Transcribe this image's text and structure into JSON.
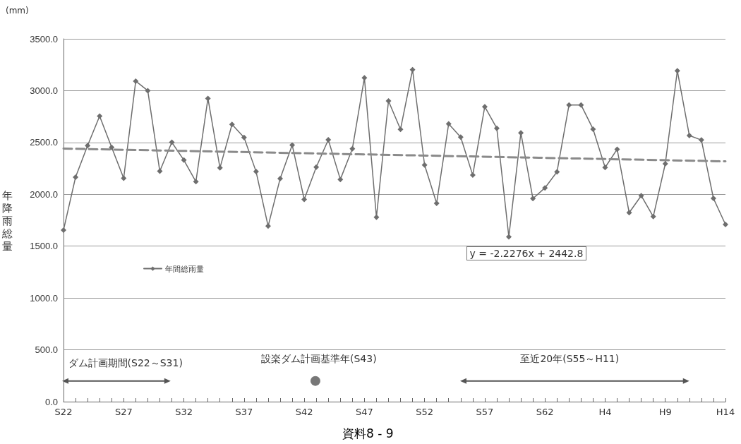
{
  "chart_data": {
    "type": "line",
    "ylabel": "年降雨総量",
    "categories": [
      "S22",
      null,
      null,
      null,
      null,
      "S27",
      null,
      null,
      null,
      null,
      "S32",
      null,
      null,
      null,
      null,
      "S37",
      null,
      null,
      null,
      null,
      "S42",
      null,
      null,
      null,
      null,
      "S47",
      null,
      null,
      null,
      null,
      "S52",
      null,
      null,
      null,
      null,
      "S57",
      null,
      null,
      null,
      null,
      "S62",
      null,
      null,
      null,
      null,
      "H4",
      null,
      null,
      null,
      null,
      "H9",
      null,
      null,
      null,
      null,
      "H14"
    ],
    "series": [
      {
        "name": "年間総雨量",
        "color": "#6e6e6e",
        "marker": "diamond",
        "line_style": "solid",
        "values": [
          1655,
          2165,
          2470,
          2755,
          2453,
          2155,
          3092,
          3000,
          2223,
          2502,
          2330,
          2122,
          2925,
          2255,
          2674,
          2549,
          2219,
          1693,
          2152,
          2476,
          1951,
          2262,
          2526,
          2144,
          2440,
          3124,
          1779,
          2901,
          2627,
          3202,
          2283,
          1914,
          2680,
          2552,
          2185,
          2845,
          2637,
          1590,
          2593,
          1959,
          2062,
          2216,
          2862,
          2862,
          2629,
          2259,
          2435,
          1823,
          1987,
          1785,
          2295,
          3192,
          2567,
          2524,
          1961,
          1709
        ]
      },
      {
        "type": "line",
        "color": "#8a8a8a",
        "marker": "none",
        "line_style": "dashed",
        "values": [
          2441,
          null,
          null,
          null,
          null,
          null,
          null,
          null,
          null,
          null,
          null,
          null,
          null,
          null,
          null,
          null,
          null,
          null,
          null,
          null,
          null,
          null,
          null,
          null,
          null,
          null,
          null,
          null,
          null,
          null,
          null,
          null,
          null,
          null,
          null,
          null,
          null,
          null,
          null,
          null,
          null,
          null,
          null,
          null,
          null,
          null,
          null,
          null,
          null,
          null,
          null,
          null,
          null,
          null,
          null,
          2318
        ]
      }
    ],
    "ylim": [
      0,
      3500
    ],
    "yticks": [
      {
        "value": 0,
        "label": "0.0"
      },
      {
        "value": 500,
        "label": "500.0"
      },
      {
        "value": 1000,
        "label": "1000.0"
      },
      {
        "value": 1500,
        "label": "1500.0"
      },
      {
        "value": 2000,
        "label": "2000.0"
      },
      {
        "value": 2500,
        "label": "2500.0"
      },
      {
        "value": 3000,
        "label": "3000.0"
      },
      {
        "value": 3500,
        "label": "3500.0"
      }
    ],
    "grid": "y",
    "legend": "left",
    "annotations": [
      "(mm)",
      "y = -2.2276x + 2442.8",
      "ダム計画期間(S22～S31)",
      "設楽ダム計画基準年(S43)",
      "至近20年(S55～H11)",
      "資料8 - 9"
    ]
  }
}
